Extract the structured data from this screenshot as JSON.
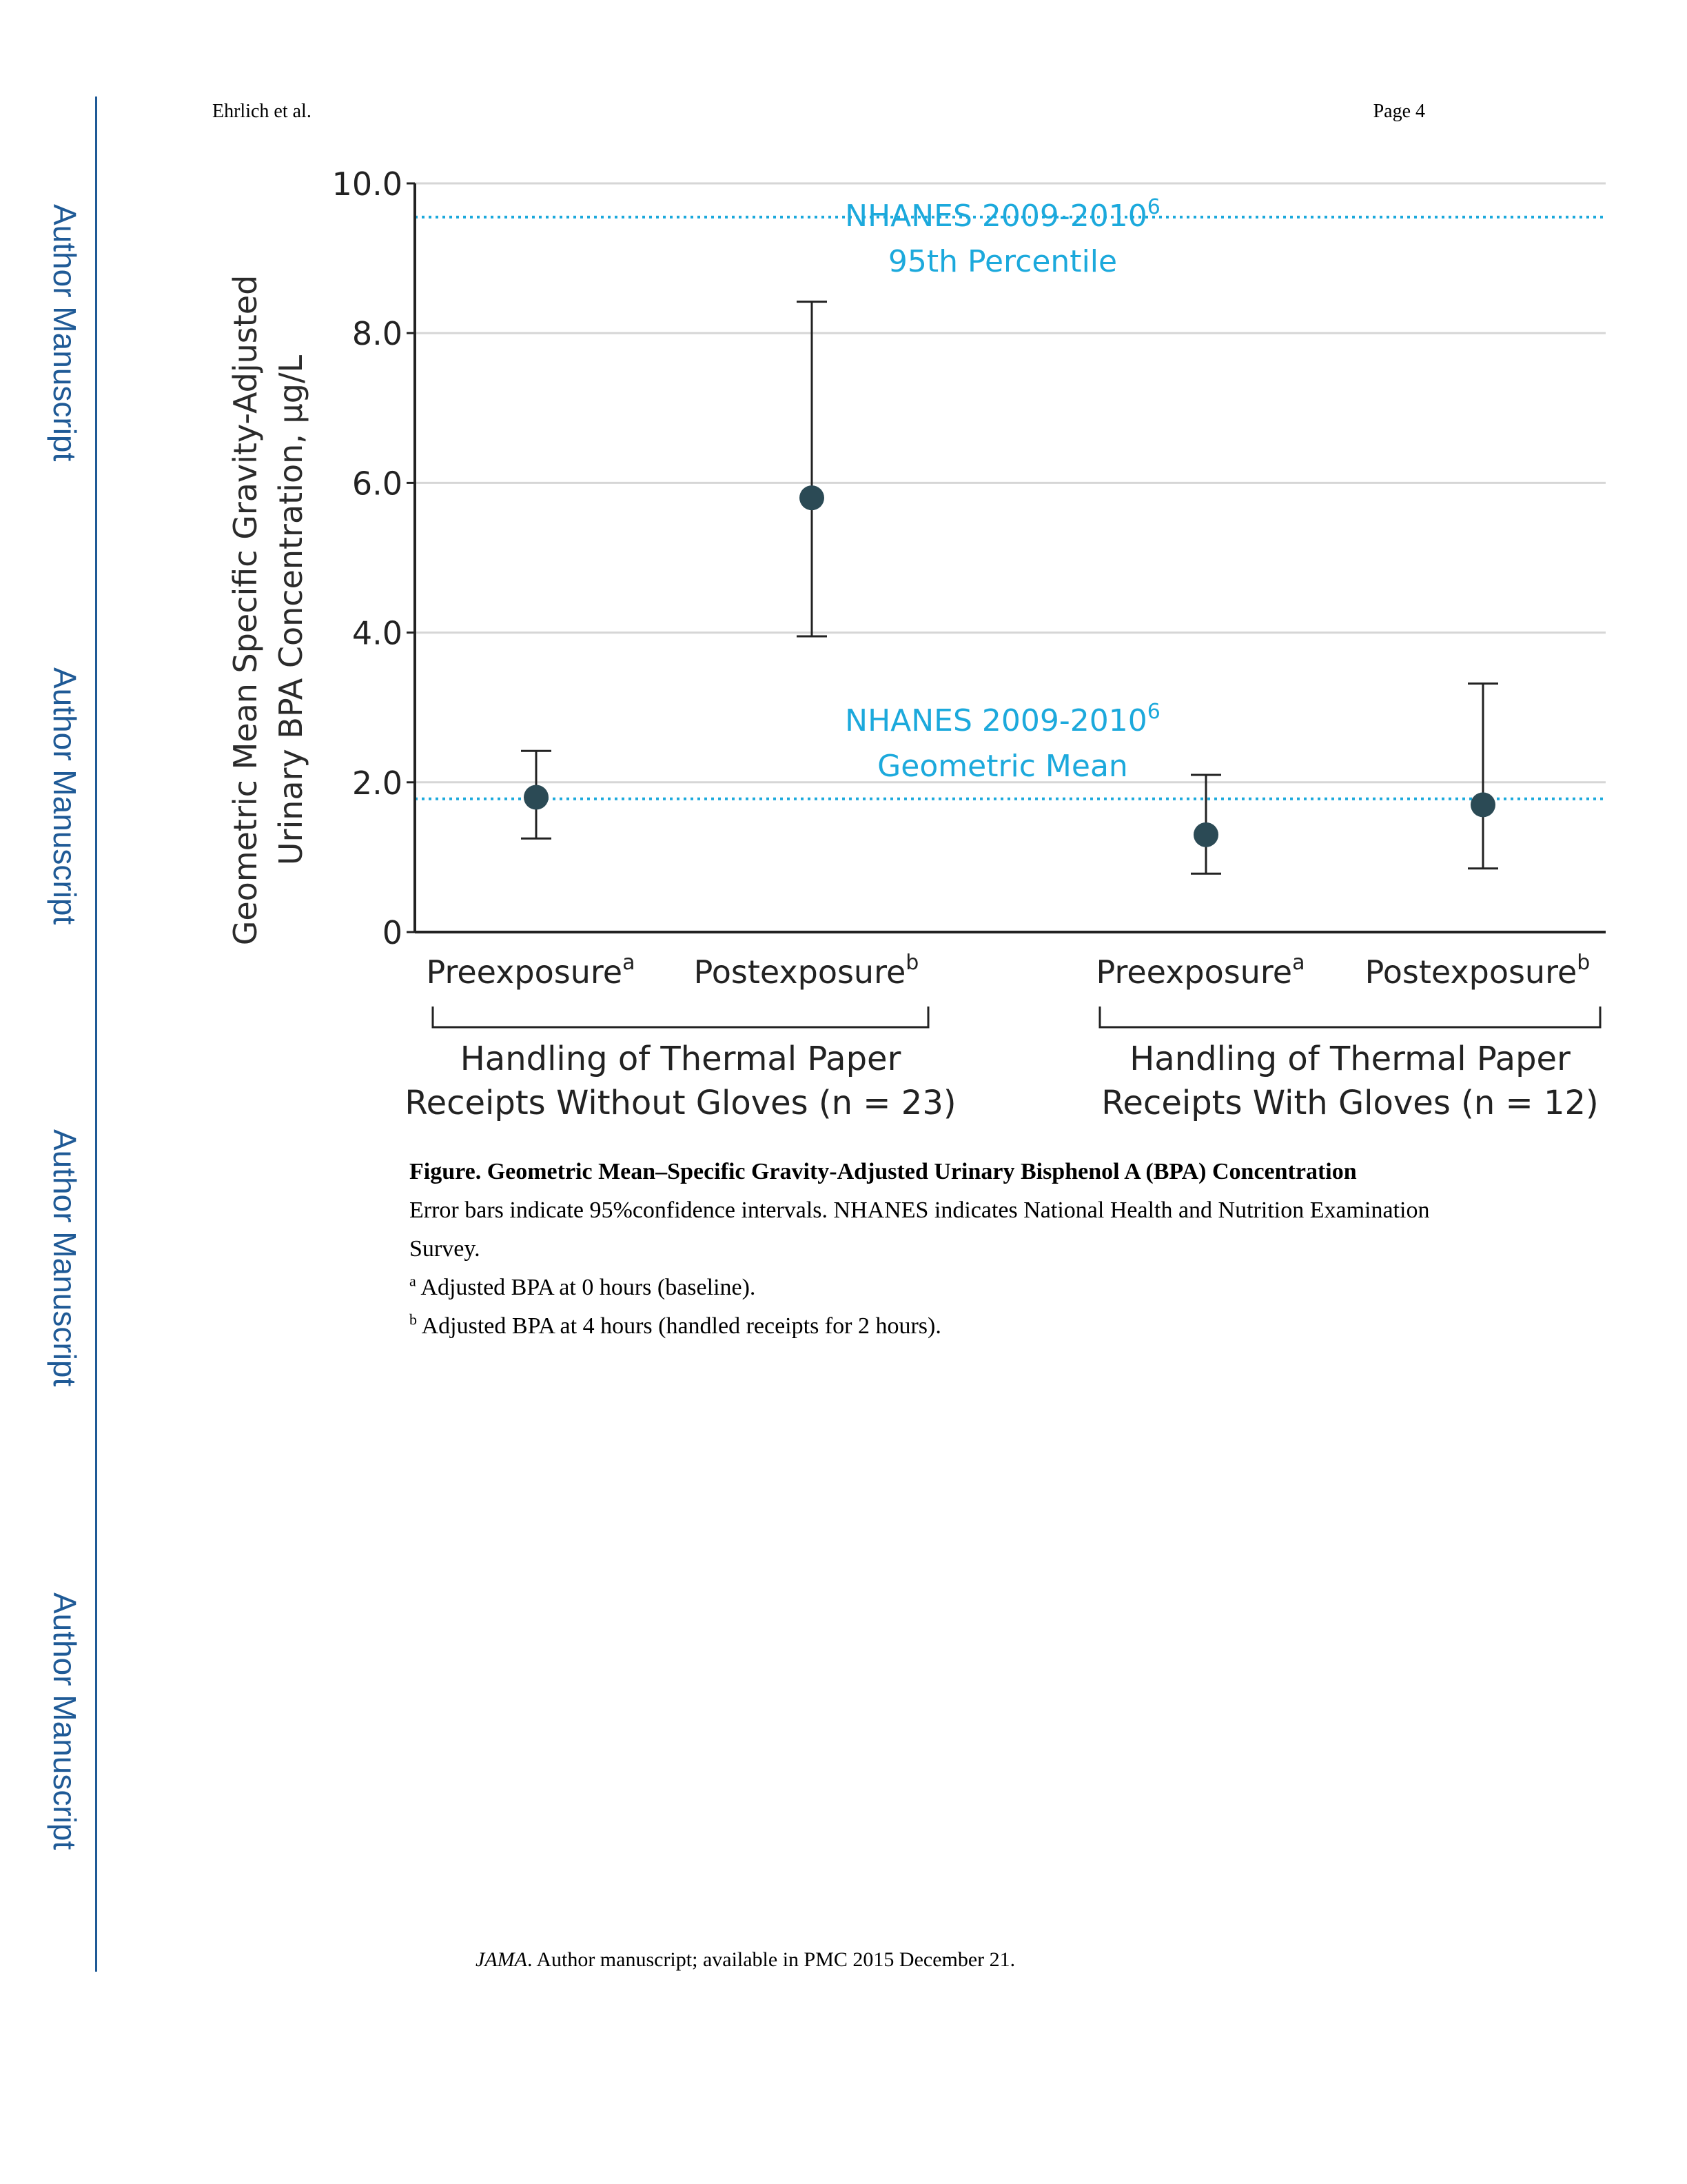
{
  "header": {
    "author": "Ehrlich et al.",
    "page": "Page 4"
  },
  "side_labels": [
    "Author Manuscript",
    "Author Manuscript",
    "Author Manuscript",
    "Author Manuscript"
  ],
  "chart_data": {
    "type": "scatter",
    "ylabel_line1": "Geometric Mean Specific Gravity-Adjusted",
    "ylabel_line2": "Urinary BPA Concentration, µg/L",
    "ylim": [
      0,
      10
    ],
    "yticks": [
      {
        "value": 0,
        "label": "0"
      },
      {
        "value": 2,
        "label": "2.0"
      },
      {
        "value": 4,
        "label": "4.0"
      },
      {
        "value": 6,
        "label": "6.0"
      },
      {
        "value": 8,
        "label": "8.0"
      },
      {
        "value": 10,
        "label": "10.0"
      }
    ],
    "grid": true,
    "points": [
      {
        "label": "Preexposure",
        "sup": "a",
        "group": 0,
        "value": 1.8,
        "ci_low": 1.25,
        "ci_high": 2.42
      },
      {
        "label": "Postexposure",
        "sup": "b",
        "group": 0,
        "value": 5.8,
        "ci_low": 3.95,
        "ci_high": 8.42
      },
      {
        "label": "Preexposure",
        "sup": "a",
        "group": 1,
        "value": 1.3,
        "ci_low": 0.78,
        "ci_high": 2.1
      },
      {
        "label": "Postexposure",
        "sup": "b",
        "group": 1,
        "value": 1.7,
        "ci_low": 0.85,
        "ci_high": 3.32
      }
    ],
    "groups": [
      {
        "line1": "Handling of Thermal Paper",
        "line2": "Receipts Without Gloves (n = 23)"
      },
      {
        "line1": "Handling of Thermal Paper",
        "line2": "Receipts With Gloves (n = 12)"
      }
    ],
    "reference_lines": [
      {
        "value": 9.55,
        "label1": "NHANES 2009-2010",
        "sup": "6",
        "label2": "95th Percentile"
      },
      {
        "value": 1.78,
        "label1": "NHANES 2009-2010",
        "sup": "6",
        "label2": "Geometric Mean"
      }
    ],
    "colors": {
      "point": "#2b4a55",
      "reference": "#1ca9dc",
      "grid": "#d6d6d6",
      "axis": "#222222"
    }
  },
  "caption": {
    "title": "Figure. Geometric Mean–Specific Gravity-Adjusted Urinary Bisphenol A (BPA) Concentration",
    "text": "Error bars indicate 95%confidence intervals. NHANES indicates National Health and Nutrition Examination Survey.",
    "note_a_mark": "a",
    "note_a": " Adjusted BPA at 0 hours (baseline).",
    "note_b_mark": "b",
    "note_b": " Adjusted BPA at 4 hours (handled receipts for 2 hours)."
  },
  "footer": {
    "journal": "JAMA",
    "text": ". Author manuscript; available in PMC 2015 December 21."
  }
}
